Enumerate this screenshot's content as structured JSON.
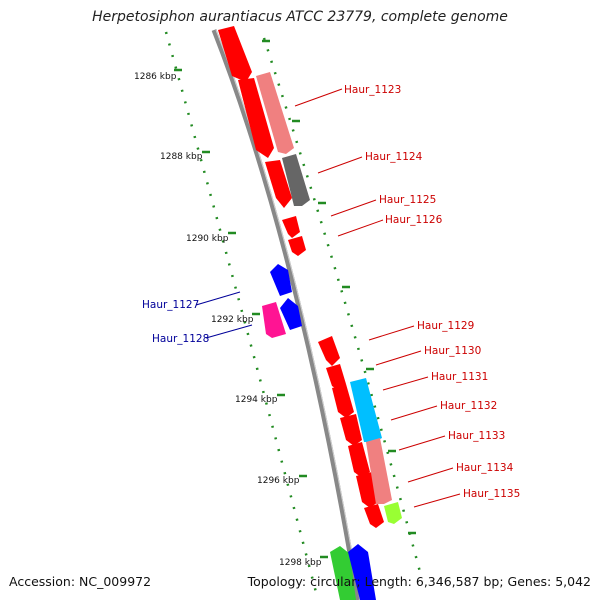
{
  "title": "Herpetosiphon aurantiacus ATCC 23779, complete genome",
  "footer": {
    "accession": "Accession: NC_009972",
    "summary": "Topology: circular; Length: 6,346,587 bp; Genes: 5,042"
  },
  "ruler_ticks": [
    "1286 kbp",
    "1288 kbp",
    "1290 kbp",
    "1292 kbp",
    "1294 kbp",
    "1296 kbp",
    "1298 kbp"
  ],
  "gene_labels": [
    {
      "id": "Haur_1123",
      "color": "#cc0000"
    },
    {
      "id": "Haur_1124",
      "color": "#cc0000"
    },
    {
      "id": "Haur_1125",
      "color": "#cc0000"
    },
    {
      "id": "Haur_1126",
      "color": "#cc0000"
    },
    {
      "id": "Haur_1127",
      "color": "#000099"
    },
    {
      "id": "Haur_1128",
      "color": "#000099"
    },
    {
      "id": "Haur_1129",
      "color": "#cc0000"
    },
    {
      "id": "Haur_1130",
      "color": "#cc0000"
    },
    {
      "id": "Haur_1131",
      "color": "#cc0000"
    },
    {
      "id": "Haur_1132",
      "color": "#cc0000"
    },
    {
      "id": "Haur_1133",
      "color": "#cc0000"
    },
    {
      "id": "Haur_1134",
      "color": "#cc0000"
    },
    {
      "id": "Haur_1135",
      "color": "#cc0000"
    }
  ],
  "colors": {
    "backbone": "#888888",
    "ruler_dots": "#228b22",
    "gene_red": "#ff0000",
    "gene_pink": "#f08080",
    "gene_gray": "#666666",
    "gene_blue": "#0000ff",
    "gene_magenta": "#ff1493",
    "gene_cyan": "#00bfff",
    "gene_lime": "#99ff33",
    "gene_green": "#33cc33"
  }
}
